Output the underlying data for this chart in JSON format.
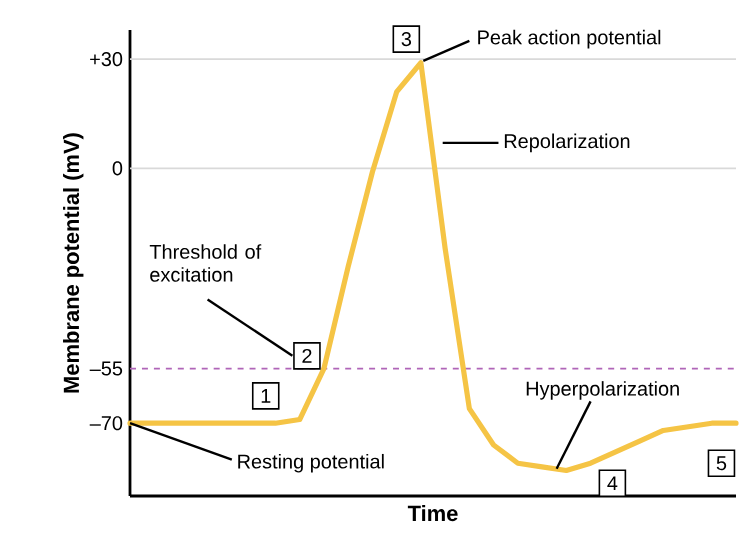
{
  "chart_data": {
    "type": "line",
    "xlabel": "Time",
    "ylabel": "Membrane potential (mV)",
    "categories": [
      null,
      null,
      null,
      null,
      null,
      null,
      null,
      null,
      null,
      null,
      null,
      null,
      null,
      null,
      null,
      null,
      null,
      null,
      null,
      null,
      null,
      null,
      null,
      null,
      null,
      null
    ],
    "series": [
      {
        "color": "#f5c445",
        "values": [
          -70,
          -70,
          -70,
          -70,
          -70,
          -70,
          -70,
          -69,
          -55,
          -27,
          -1,
          21,
          29,
          -22,
          -66,
          -76,
          -81,
          -82,
          -83,
          -81,
          -78,
          -75,
          -72,
          -71,
          -70,
          -70
        ]
      }
    ],
    "ylim": [
      -90,
      38
    ],
    "yticks": [
      {
        "value": 30,
        "label": "+30"
      },
      {
        "value": 0,
        "label": "0"
      },
      {
        "value": -55,
        "label": "–55"
      },
      {
        "value": -70,
        "label": "–70"
      }
    ],
    "ref_lines": [
      {
        "axis": "y",
        "value": 30,
        "color": "#d9d9d9",
        "line_style": "solid"
      },
      {
        "axis": "y",
        "value": 0,
        "color": "#d9d9d9",
        "line_style": "solid"
      },
      {
        "axis": "y",
        "value": -55,
        "color": "#b065b8",
        "line_style": "dashed"
      }
    ],
    "annotations": [
      "3",
      "Peak action potential",
      "Repolarization",
      "Threshold of excitation",
      "2",
      "1",
      "Hyperpolarization",
      "4",
      "5",
      "Resting potential"
    ],
    "line_style": "solid",
    "marker": "none"
  }
}
